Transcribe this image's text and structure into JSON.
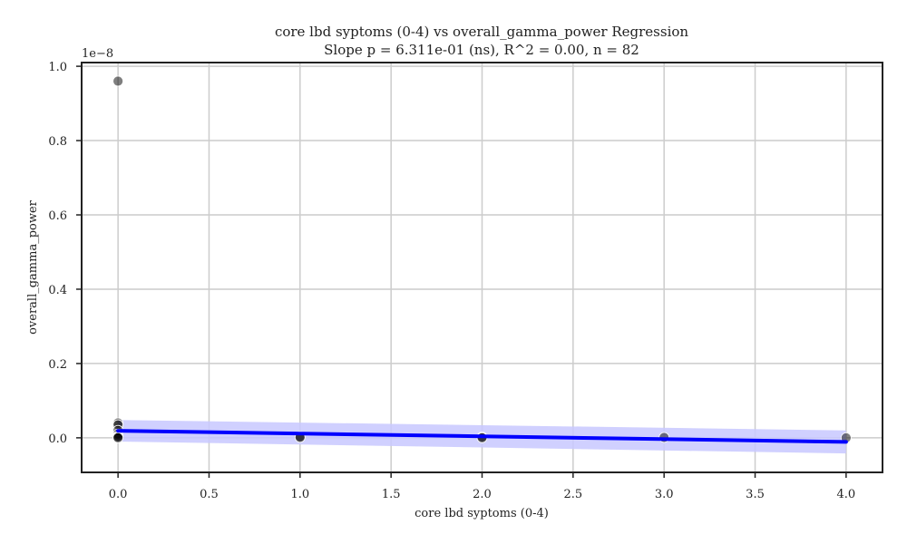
{
  "chart_data": {
    "type": "scatter",
    "title": "core lbd syptoms (0-4) vs overall_gamma_power Regression",
    "subtitle": "Slope p = 6.311e-01 (ns), R^2 = 0.00, n = 82",
    "xlabel": "core lbd syptoms (0-4)",
    "ylabel": "overall_gamma_power",
    "y_offset_label": "1e−8",
    "xlim": [
      -0.2,
      4.2
    ],
    "ylim": [
      -0.093,
      1.01
    ],
    "xticks": [
      0.0,
      0.5,
      1.0,
      1.5,
      2.0,
      2.5,
      3.0,
      3.5,
      4.0
    ],
    "xtick_labels": [
      "0.0",
      "0.5",
      "1.0",
      "1.5",
      "2.0",
      "2.5",
      "3.0",
      "3.5",
      "4.0"
    ],
    "yticks": [
      0.0,
      0.2,
      0.4,
      0.6,
      0.8,
      1.0
    ],
    "ytick_labels": [
      "0.0",
      "0.2",
      "0.4",
      "0.6",
      "0.8",
      "1.0"
    ],
    "grid": true,
    "points": [
      {
        "x": 0,
        "y": 0.96
      },
      {
        "x": 0,
        "y": 0.04
      },
      {
        "x": 0,
        "y": 0.035
      },
      {
        "x": 0,
        "y": 0.02
      },
      {
        "x": 0,
        "y": 0.01
      },
      {
        "x": 0,
        "y": 0.005
      },
      {
        "x": 0,
        "y": 0.002
      },
      {
        "x": 0,
        "y": 0.0
      },
      {
        "x": 1,
        "y": 0.003
      },
      {
        "x": 1,
        "y": 0.001
      },
      {
        "x": 2,
        "y": 0.002
      },
      {
        "x": 2,
        "y": 0.0
      },
      {
        "x": 3,
        "y": 0.001
      },
      {
        "x": 4,
        "y": 0.0
      }
    ],
    "regression": {
      "x": [
        0,
        4
      ],
      "y": [
        0.019,
        -0.011
      ],
      "ci_lower": [
        -0.01,
        -0.042
      ],
      "ci_upper": [
        0.048,
        0.02
      ]
    },
    "colors": {
      "point": "#000000",
      "line": "#0000ff",
      "band": "#c8c8ff",
      "grid": "#cccccc",
      "axis": "#222222"
    }
  }
}
